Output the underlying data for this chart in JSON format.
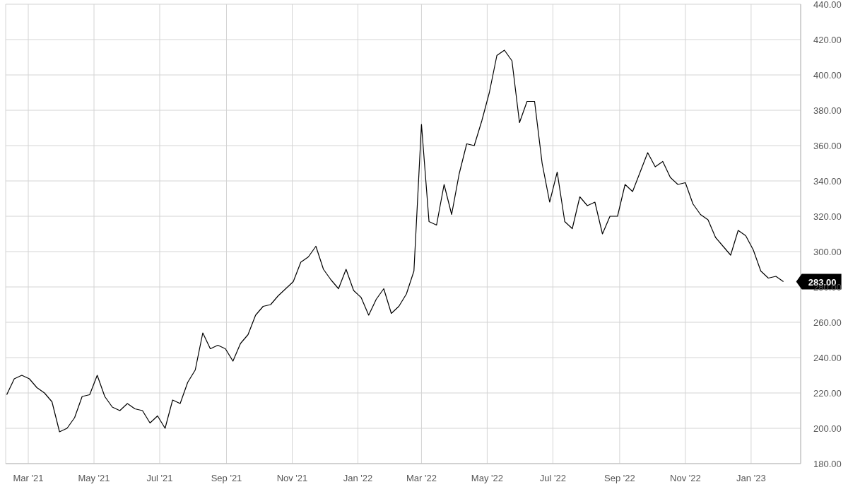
{
  "chart_data": {
    "type": "line",
    "x": [
      "2021-02-09",
      "2021-02-16",
      "2021-02-23",
      "2021-03-02",
      "2021-03-09",
      "2021-03-16",
      "2021-03-23",
      "2021-03-30",
      "2021-04-06",
      "2021-04-13",
      "2021-04-20",
      "2021-04-27",
      "2021-05-04",
      "2021-05-11",
      "2021-05-18",
      "2021-05-25",
      "2021-06-01",
      "2021-06-08",
      "2021-06-15",
      "2021-06-22",
      "2021-06-29",
      "2021-07-06",
      "2021-07-13",
      "2021-07-20",
      "2021-07-27",
      "2021-08-03",
      "2021-08-10",
      "2021-08-17",
      "2021-08-24",
      "2021-08-31",
      "2021-09-07",
      "2021-09-14",
      "2021-09-21",
      "2021-09-28",
      "2021-10-05",
      "2021-10-12",
      "2021-10-19",
      "2021-10-26",
      "2021-11-02",
      "2021-11-09",
      "2021-11-16",
      "2021-11-23",
      "2021-11-30",
      "2021-12-07",
      "2021-12-14",
      "2021-12-21",
      "2021-12-28",
      "2022-01-04",
      "2022-01-11",
      "2022-01-18",
      "2022-01-25",
      "2022-02-01",
      "2022-02-08",
      "2022-02-15",
      "2022-02-22",
      "2022-03-01",
      "2022-03-08",
      "2022-03-15",
      "2022-03-22",
      "2022-03-29",
      "2022-04-05",
      "2022-04-12",
      "2022-04-19",
      "2022-04-26",
      "2022-05-03",
      "2022-05-10",
      "2022-05-17",
      "2022-05-24",
      "2022-05-31",
      "2022-06-07",
      "2022-06-14",
      "2022-06-21",
      "2022-06-28",
      "2022-07-05",
      "2022-07-12",
      "2022-07-19",
      "2022-07-26",
      "2022-08-02",
      "2022-08-09",
      "2022-08-16",
      "2022-08-23",
      "2022-08-30",
      "2022-09-06",
      "2022-09-13",
      "2022-09-20",
      "2022-09-27",
      "2022-10-04",
      "2022-10-11",
      "2022-10-18",
      "2022-10-25",
      "2022-11-01",
      "2022-11-08",
      "2022-11-15",
      "2022-11-22",
      "2022-11-29",
      "2022-12-06",
      "2022-12-13",
      "2022-12-20",
      "2022-12-27",
      "2023-01-03",
      "2023-01-10",
      "2023-01-17",
      "2023-01-24",
      "2023-01-31"
    ],
    "series": [
      {
        "color": "#000000",
        "values": [
          219,
          228,
          230,
          228,
          223,
          220,
          215,
          198,
          200,
          206,
          218,
          219,
          230,
          218,
          212,
          210,
          214,
          211,
          210,
          203,
          207,
          200,
          216,
          214,
          226,
          233,
          254,
          245,
          247,
          245,
          238,
          248,
          253,
          264,
          269,
          270,
          275,
          279,
          283,
          294,
          297,
          303,
          290,
          284,
          279,
          290,
          278,
          274,
          264,
          273,
          279,
          265,
          269,
          276,
          289,
          372,
          317,
          315,
          338,
          321,
          344,
          361,
          360,
          374,
          390,
          411,
          414,
          408,
          373,
          385,
          385,
          350,
          328,
          345,
          317,
          313,
          331,
          326,
          328,
          310,
          320,
          320,
          338,
          334,
          345,
          356,
          348,
          351,
          342,
          338,
          339,
          327,
          321,
          318,
          308,
          303,
          298,
          312,
          309,
          301,
          289,
          285,
          286,
          283
        ]
      }
    ],
    "xlim": [
      "2021-02-08",
      "2023-02-16"
    ],
    "xticks": [
      {
        "value": "2021-03-01",
        "label": "Mar '21"
      },
      {
        "value": "2021-05-01",
        "label": "May '21"
      },
      {
        "value": "2021-07-01",
        "label": "Jul '21"
      },
      {
        "value": "2021-09-01",
        "label": "Sep '21"
      },
      {
        "value": "2021-11-01",
        "label": "Nov '21"
      },
      {
        "value": "2022-01-01",
        "label": "Jan '22"
      },
      {
        "value": "2022-03-01",
        "label": "Mar '22"
      },
      {
        "value": "2022-05-01",
        "label": "May '22"
      },
      {
        "value": "2022-07-01",
        "label": "Jul '22"
      },
      {
        "value": "2022-09-01",
        "label": "Sep '22"
      },
      {
        "value": "2022-11-01",
        "label": "Nov '22"
      },
      {
        "value": "2023-01-01",
        "label": "Jan '23"
      }
    ],
    "ylim": [
      180,
      440
    ],
    "yticks": [
      {
        "value": 180,
        "label": "180.00"
      },
      {
        "value": 200,
        "label": "200.00"
      },
      {
        "value": 220,
        "label": "220.00"
      },
      {
        "value": 240,
        "label": "240.00"
      },
      {
        "value": 260,
        "label": "260.00"
      },
      {
        "value": 280,
        "label": "280.00"
      },
      {
        "value": 300,
        "label": "300.00"
      },
      {
        "value": 320,
        "label": "320.00"
      },
      {
        "value": 340,
        "label": "340.00"
      },
      {
        "value": 360,
        "label": "360.00"
      },
      {
        "value": 380,
        "label": "380.00"
      },
      {
        "value": 400,
        "label": "400.00"
      },
      {
        "value": 420,
        "label": "420.00"
      },
      {
        "value": 440,
        "label": "440.00"
      }
    ],
    "annotations": [
      {
        "text": "283.00",
        "x": "2023-01-31",
        "y": 283
      }
    ],
    "grid": true,
    "line_style": "solid"
  }
}
